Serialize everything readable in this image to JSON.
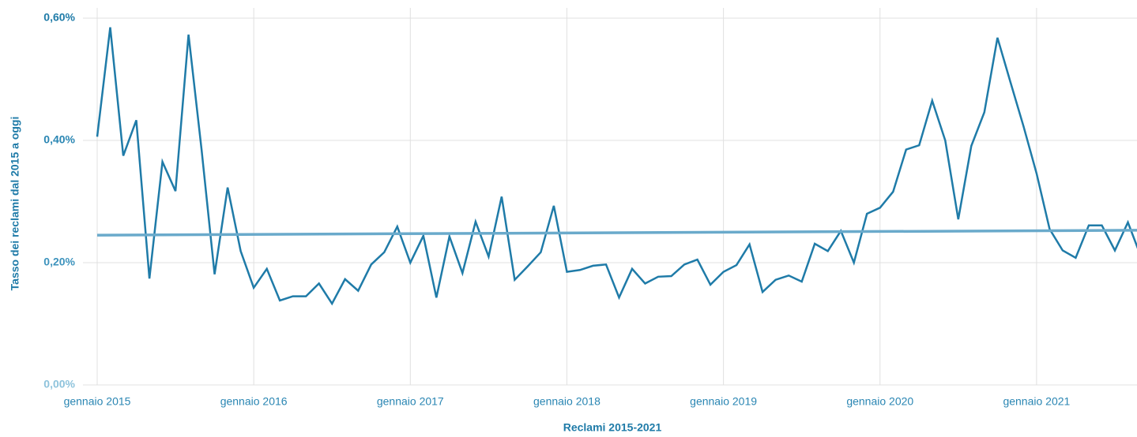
{
  "chart_data": {
    "type": "line",
    "x_title": "Reclami 2015-2021",
    "y_title": "Tasso dei reclami dal 2015 a oggi",
    "x": [
      "2015-01",
      "2015-02",
      "2015-03",
      "2015-04",
      "2015-05",
      "2015-06",
      "2015-07",
      "2015-08",
      "2015-09",
      "2015-10",
      "2015-11",
      "2015-12",
      "2016-01",
      "2016-02",
      "2016-03",
      "2016-04",
      "2016-05",
      "2016-06",
      "2016-07",
      "2016-08",
      "2016-09",
      "2016-10",
      "2016-11",
      "2016-12",
      "2017-01",
      "2017-02",
      "2017-03",
      "2017-04",
      "2017-05",
      "2017-06",
      "2017-07",
      "2017-08",
      "2017-09",
      "2017-10",
      "2017-11",
      "2017-12",
      "2018-01",
      "2018-02",
      "2018-03",
      "2018-04",
      "2018-05",
      "2018-06",
      "2018-07",
      "2018-08",
      "2018-09",
      "2018-10",
      "2018-11",
      "2018-12",
      "2019-01",
      "2019-02",
      "2019-03",
      "2019-04",
      "2019-05",
      "2019-06",
      "2019-07",
      "2019-08",
      "2019-09",
      "2019-10",
      "2019-11",
      "2019-12",
      "2020-01",
      "2020-02",
      "2020-03",
      "2020-04",
      "2020-05",
      "2020-06",
      "2020-07",
      "2020-08",
      "2020-09",
      "2020-10",
      "2020-11",
      "2020-12",
      "2021-01",
      "2021-02",
      "2021-03",
      "2021-04",
      "2021-05",
      "2021-06",
      "2021-07",
      "2021-08",
      "2021-09"
    ],
    "series": [
      {
        "color": "#1f7ba8",
        "values": [
          0.406,
          0.585,
          0.375,
          0.433,
          0.174,
          0.365,
          0.317,
          0.573,
          0.385,
          0.181,
          0.323,
          0.219,
          0.159,
          0.19,
          0.138,
          0.145,
          0.145,
          0.166,
          0.133,
          0.173,
          0.154,
          0.197,
          0.217,
          0.259,
          0.2,
          0.244,
          0.143,
          0.243,
          0.183,
          0.267,
          0.21,
          0.308,
          0.172,
          0.194,
          0.217,
          0.293,
          0.185,
          0.188,
          0.195,
          0.197,
          0.143,
          0.19,
          0.166,
          0.177,
          0.178,
          0.197,
          0.205,
          0.164,
          0.185,
          0.196,
          0.23,
          0.152,
          0.172,
          0.179,
          0.169,
          0.231,
          0.219,
          0.252,
          0.2,
          0.28,
          0.29,
          0.316,
          0.385,
          0.392,
          0.465,
          0.4,
          0.271,
          0.391,
          0.446,
          0.568,
          0.495,
          0.423,
          0.346,
          0.255,
          0.22,
          0.208,
          0.261,
          0.261,
          0.22,
          0.266,
          0.21
        ]
      }
    ],
    "trendline": {
      "color": "#6aaacb",
      "x": [
        "2015-01",
        "2021-09"
      ],
      "values": [
        0.245,
        0.253
      ]
    },
    "xlim": [
      "2015-01",
      "2021-09"
    ],
    "xticks": [
      {
        "value": "2015-01",
        "label": "gennaio 2015"
      },
      {
        "value": "2016-01",
        "label": "gennaio 2016"
      },
      {
        "value": "2017-01",
        "label": "gennaio 2017"
      },
      {
        "value": "2018-01",
        "label": "gennaio 2018"
      },
      {
        "value": "2019-01",
        "label": "gennaio 2019"
      },
      {
        "value": "2020-01",
        "label": "gennaio 2020"
      },
      {
        "value": "2021-01",
        "label": "gennaio 2021"
      }
    ],
    "ylim": [
      0,
      0.6
    ],
    "yticks": [
      {
        "value": 0,
        "label": "0,00%"
      },
      {
        "value": 0.2,
        "label": "0,20%"
      },
      {
        "value": 0.4,
        "label": "0,40%"
      },
      {
        "value": 0.6,
        "label": "0,60%"
      }
    ],
    "grid": true
  }
}
